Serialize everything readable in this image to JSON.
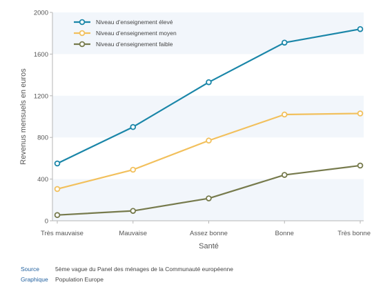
{
  "chart_data": {
    "type": "line",
    "xlabel": "Santé",
    "ylabel": "Revenus mensuels en euros",
    "ylim": [
      0,
      2000
    ],
    "yticks": [
      0,
      400,
      800,
      1200,
      1600,
      2000
    ],
    "categories": [
      "Très mauvaise",
      "Mauvaise",
      "Assez bonne",
      "Bonne",
      "Très bonne"
    ],
    "grid": "alternating horizontal bands",
    "legend_position": "top-left",
    "series": [
      {
        "name": "Niveau d’enseignement élevé",
        "color": "#1a86a8",
        "values": [
          550,
          900,
          1330,
          1710,
          1840
        ]
      },
      {
        "name": "Niveau d’enseignement moyen",
        "color": "#f2c05c",
        "values": [
          305,
          490,
          770,
          1020,
          1030
        ]
      },
      {
        "name": "Niveau d’enseignement faible",
        "color": "#767a4c",
        "values": [
          55,
          95,
          215,
          440,
          530
        ]
      }
    ]
  },
  "footer": {
    "source_label": "Source",
    "source_text": "5ème vague du Panel des ménages de la Communauté européenne",
    "graphic_label": "Graphique",
    "graphic_text": "Population Europe"
  }
}
